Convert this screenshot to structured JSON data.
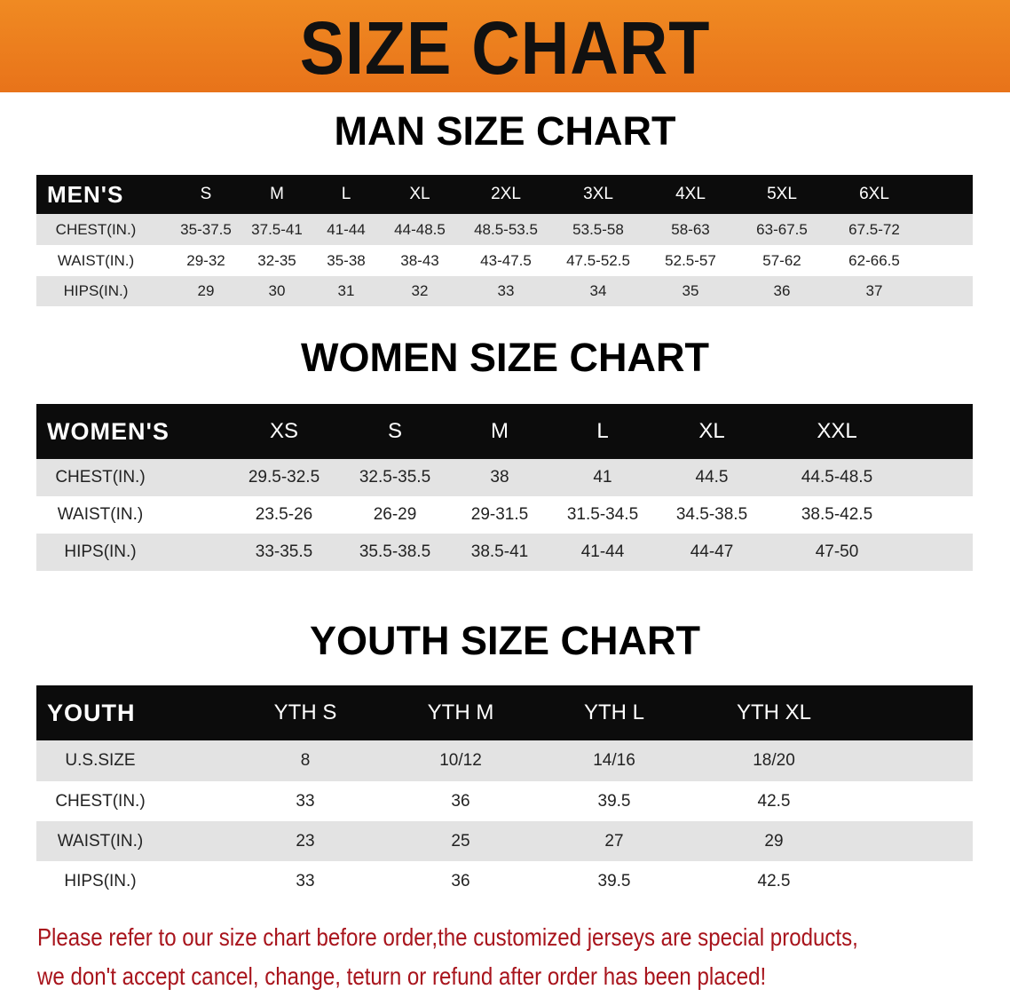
{
  "banner": {
    "title": "SIZE CHART",
    "color": "#ec7d1e"
  },
  "men": {
    "heading": "MAN SIZE CHART",
    "corner": "MEN'S",
    "sizes": [
      "S",
      "M",
      "L",
      "XL",
      "2XL",
      "3XL",
      "4XL",
      "5XL",
      "6XL"
    ],
    "rows": [
      {
        "label": "CHEST(IN.)",
        "values": [
          "35-37.5",
          "37.5-41",
          "41-44",
          "44-48.5",
          "48.5-53.5",
          "53.5-58",
          "58-63",
          "63-67.5",
          "67.5-72"
        ]
      },
      {
        "label": "WAIST(IN.)",
        "values": [
          "29-32",
          "32-35",
          "35-38",
          "38-43",
          "43-47.5",
          "47.5-52.5",
          "52.5-57",
          "57-62",
          "62-66.5"
        ]
      },
      {
        "label": "HIPS(IN.)",
        "values": [
          "29",
          "30",
          "31",
          "32",
          "33",
          "34",
          "35",
          "36",
          "37"
        ]
      }
    ]
  },
  "women": {
    "heading": "WOMEN SIZE CHART",
    "corner": "WOMEN'S",
    "sizes": [
      "XS",
      "S",
      "M",
      "L",
      "XL",
      "XXL"
    ],
    "rows": [
      {
        "label": "CHEST(IN.)",
        "values": [
          "29.5-32.5",
          "32.5-35.5",
          "38",
          "41",
          "44.5",
          "44.5-48.5"
        ]
      },
      {
        "label": "WAIST(IN.)",
        "values": [
          "23.5-26",
          "26-29",
          "29-31.5",
          "31.5-34.5",
          "34.5-38.5",
          "38.5-42.5"
        ]
      },
      {
        "label": "HIPS(IN.)",
        "values": [
          "33-35.5",
          "35.5-38.5",
          "38.5-41",
          "41-44",
          "44-47",
          "47-50"
        ]
      }
    ]
  },
  "youth": {
    "heading": "YOUTH SIZE CHART",
    "corner": "YOUTH",
    "sizes": [
      "YTH S",
      "YTH M",
      "YTH L",
      "YTH XL"
    ],
    "rows": [
      {
        "label": "U.S.SIZE",
        "values": [
          "8",
          "10/12",
          "14/16",
          "18/20"
        ]
      },
      {
        "label": "CHEST(IN.)",
        "values": [
          "33",
          "36",
          "39.5",
          "42.5"
        ]
      },
      {
        "label": "WAIST(IN.)",
        "values": [
          "23",
          "25",
          "27",
          "29"
        ]
      },
      {
        "label": "HIPS(IN.)",
        "values": [
          "33",
          "36",
          "39.5",
          "42.5"
        ]
      }
    ]
  },
  "notice": {
    "line1": "Please refer to our size chart before order,the customized jerseys are special products,",
    "line2": "we don't accept cancel, change, teturn or refund after order has been placed!",
    "color": "#a8141c"
  }
}
